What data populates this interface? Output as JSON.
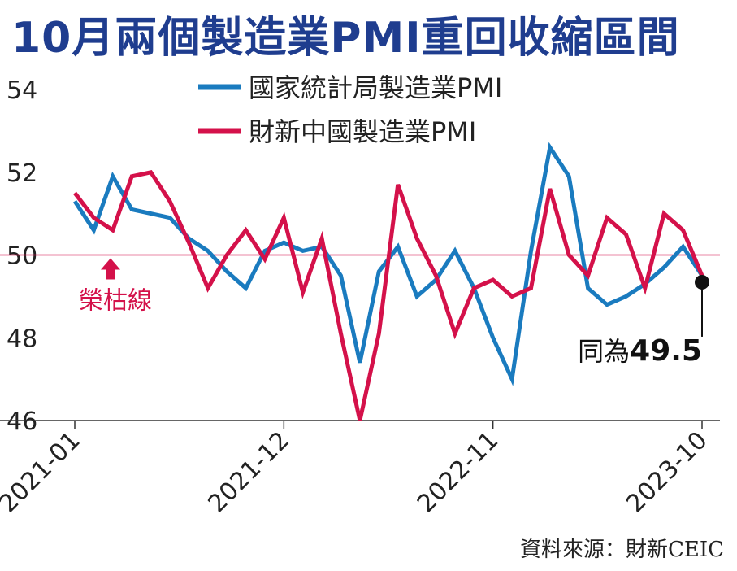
{
  "title": "10月兩個製造業PMI重回收縮區間",
  "source": "資料來源：財新CEIC",
  "chart_data": {
    "type": "line",
    "title": "10月兩個製造業PMI重回收縮區間",
    "xlabel": "",
    "ylabel": "",
    "ylim": [
      46,
      54
    ],
    "yticks": [
      46,
      48,
      50,
      52,
      54
    ],
    "x_tick_labels": [
      "2021-01",
      "2021-12",
      "2022-11",
      "2023-10"
    ],
    "x": [
      "2021-01",
      "2021-02",
      "2021-03",
      "2021-04",
      "2021-05",
      "2021-06",
      "2021-07",
      "2021-08",
      "2021-09",
      "2021-10",
      "2021-11",
      "2021-12",
      "2022-01",
      "2022-02",
      "2022-03",
      "2022-04",
      "2022-05",
      "2022-06",
      "2022-07",
      "2022-08",
      "2022-09",
      "2022-10",
      "2022-11",
      "2022-12",
      "2023-01",
      "2023-02",
      "2023-03",
      "2023-04",
      "2023-05",
      "2023-06",
      "2023-07",
      "2023-08",
      "2023-09",
      "2023-10"
    ],
    "reference_line": {
      "value": 50.0,
      "label": "榮枯線",
      "color": "#d4114a"
    },
    "series": [
      {
        "name": "國家統計局製造業PMI",
        "color": "#1a7bbf",
        "values": [
          51.3,
          50.6,
          51.9,
          51.1,
          51.0,
          50.9,
          50.4,
          50.1,
          49.6,
          49.2,
          50.1,
          50.3,
          50.1,
          50.2,
          49.5,
          47.4,
          49.6,
          50.2,
          49.0,
          49.4,
          50.1,
          49.2,
          48.0,
          47.0,
          50.1,
          52.6,
          51.9,
          49.2,
          48.8,
          49.0,
          49.3,
          49.7,
          50.2,
          49.5
        ]
      },
      {
        "name": "財新中國製造業PMI",
        "color": "#d4114a",
        "values": [
          51.5,
          50.9,
          50.6,
          51.9,
          52.0,
          51.3,
          50.3,
          49.2,
          50.0,
          50.6,
          49.9,
          50.9,
          49.1,
          50.4,
          48.1,
          46.0,
          48.1,
          51.7,
          50.4,
          49.5,
          48.1,
          49.2,
          49.4,
          49.0,
          49.2,
          51.6,
          50.0,
          49.5,
          50.9,
          50.5,
          49.2,
          51.0,
          50.6,
          49.5
        ]
      }
    ],
    "annotation": {
      "text_prefix": "同為",
      "value": "49.5",
      "index": 33
    }
  }
}
